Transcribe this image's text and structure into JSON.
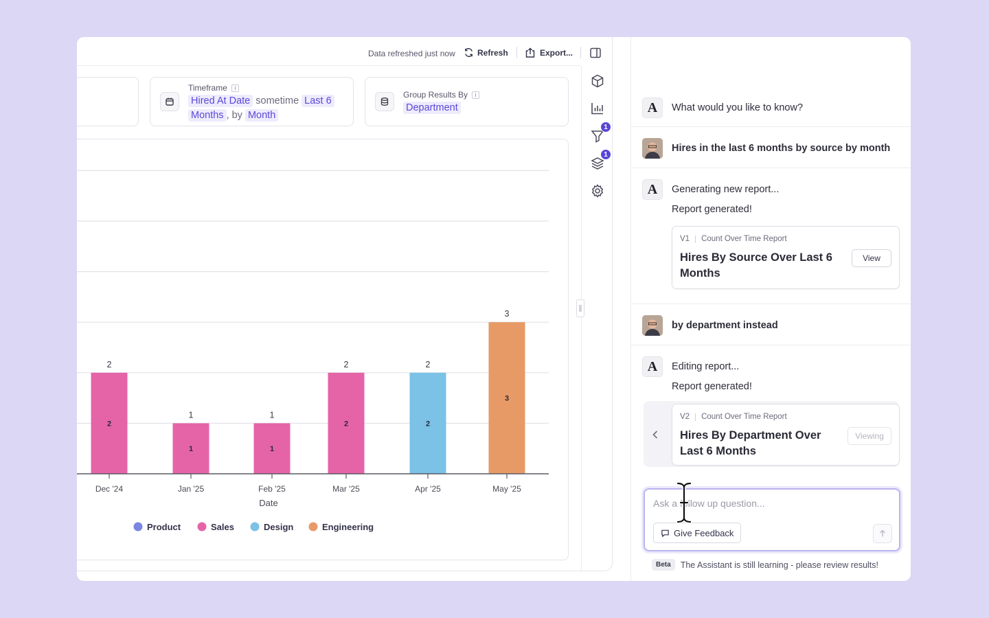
{
  "topbar": {
    "refreshed": "Data refreshed just now",
    "refresh_label": "Refresh",
    "export_label": "Export..."
  },
  "filters": {
    "timeframe": {
      "label": "Timeframe",
      "field": "Hired At Date",
      "operator": "sometime",
      "range_part1": "Last 6",
      "range_part2": "Months",
      "by_text": ", by",
      "granularity": "Month"
    },
    "group_by": {
      "label": "Group Results By",
      "value": "Department"
    }
  },
  "sidebar": {
    "filter_badge": "1",
    "layers_badge": "1"
  },
  "chart_data": {
    "type": "bar",
    "stacked": true,
    "xlabel": "Date",
    "categories": [
      "Dec '24",
      "Jan '25",
      "Feb '25",
      "Mar '25",
      "Apr '25",
      "May '25"
    ],
    "series": [
      {
        "name": "Product",
        "color": "#7b86e0",
        "values": [
          0,
          0,
          0,
          0,
          0,
          0
        ]
      },
      {
        "name": "Sales",
        "color": "#e564a8",
        "values": [
          2,
          1,
          1,
          2,
          0,
          0
        ]
      },
      {
        "name": "Design",
        "color": "#7cc1e6",
        "values": [
          0,
          0,
          0,
          0,
          2,
          0
        ]
      },
      {
        "name": "Engineering",
        "color": "#e79a66",
        "values": [
          0,
          0,
          0,
          0,
          0,
          3
        ]
      }
    ],
    "totals": [
      2,
      1,
      1,
      2,
      2,
      3
    ],
    "ylim": [
      0,
      6
    ],
    "grid": true,
    "legend_position": "bottom"
  },
  "assistant": {
    "messages": [
      {
        "role": "assistant",
        "text": "What would you like to know?"
      },
      {
        "role": "user",
        "text": "Hires in the last 6 months by source by month"
      },
      {
        "role": "assistant",
        "text": "Generating new report...",
        "sub": "Report generated!",
        "card": {
          "version": "V1",
          "type": "Count Over Time Report",
          "title": "Hires By Source Over Last 6 Months",
          "button": "View"
        }
      },
      {
        "role": "user",
        "text": "by department instead"
      },
      {
        "role": "assistant",
        "text": "Editing report...",
        "sub": "Report generated!",
        "card": {
          "version": "V2",
          "type": "Count Over Time Report",
          "title": "Hires By Department Over Last 6 Months",
          "button": "Viewing"
        }
      }
    ],
    "composer": {
      "placeholder": "Ask a follow up question...",
      "feedback_label": "Give Feedback"
    },
    "beta_label": "Beta",
    "disclaimer": "The Assistant is still learning - please review results!"
  }
}
